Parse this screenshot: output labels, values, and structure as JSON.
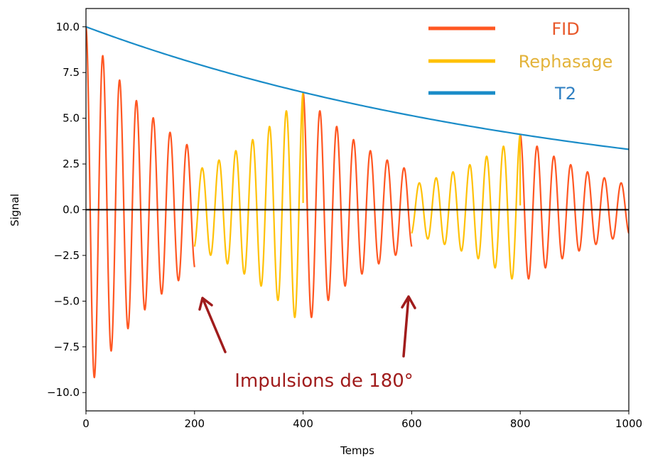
{
  "chart_data": {
    "type": "line",
    "title": "",
    "xlabel": "Temps",
    "ylabel": "Signal",
    "xlim": [
      0,
      1000
    ],
    "ylim": [
      -11,
      11
    ],
    "xticks": [
      0,
      200,
      400,
      600,
      800,
      1000
    ],
    "xtick_labels": [
      "0",
      "200",
      "400",
      "600",
      "800",
      "1000"
    ],
    "yticks": [
      -10.0,
      -7.5,
      -5.0,
      -2.5,
      0.0,
      2.5,
      5.0,
      7.5,
      10.0
    ],
    "ytick_labels": [
      "−10.0",
      "−7.5",
      "−5.0",
      "−2.5",
      "0.0",
      "2.5",
      "5.0",
      "7.5",
      "10.0"
    ],
    "grid": false,
    "legend_position": "top-right",
    "series": [
      {
        "name": "FID",
        "color": "#ff5722",
        "kind": "decaying-cosine",
        "amplitude": 10.0,
        "period": 31.0,
        "intervals": [
          [
            0,
            200
          ],
          [
            400,
            600
          ],
          [
            800,
            1000
          ]
        ],
        "peaks_approx": [
          [
            0,
            10.0
          ],
          [
            30,
            8.4
          ],
          [
            62,
            7.0
          ],
          [
            93,
            5.9
          ],
          [
            124,
            4.9
          ],
          [
            155,
            4.1
          ],
          [
            186,
            3.4
          ],
          [
            400,
            6.4
          ],
          [
            430,
            5.3
          ],
          [
            460,
            4.4
          ],
          [
            490,
            3.7
          ],
          [
            520,
            3.1
          ],
          [
            550,
            2.6
          ],
          [
            580,
            2.2
          ],
          [
            800,
            4.1
          ],
          [
            830,
            3.4
          ],
          [
            860,
            2.8
          ],
          [
            890,
            2.3
          ],
          [
            920,
            1.9
          ],
          [
            950,
            1.6
          ],
          [
            980,
            1.3
          ]
        ]
      },
      {
        "name": "Rephasage",
        "color": "#ffc107",
        "kind": "growing-cosine",
        "period": 31.0,
        "intervals": [
          [
            200,
            400
          ],
          [
            600,
            800
          ]
        ],
        "peaks_approx": [
          [
            213,
            3.4
          ],
          [
            244,
            3.8
          ],
          [
            275,
            4.2
          ],
          [
            306,
            4.6
          ],
          [
            337,
            5.2
          ],
          [
            368,
            5.7
          ],
          [
            613,
            2.1
          ],
          [
            644,
            2.4
          ],
          [
            675,
            2.7
          ],
          [
            706,
            3.0
          ],
          [
            737,
            3.3
          ],
          [
            768,
            3.7
          ]
        ]
      },
      {
        "name": "T2",
        "color": "#1a8cc8",
        "kind": "exponential-envelope",
        "x": [
          0,
          100,
          200,
          300,
          400,
          500,
          600,
          700,
          800,
          900,
          1000
        ],
        "values": [
          10.0,
          8.95,
          8.0,
          7.15,
          6.4,
          5.7,
          5.1,
          4.6,
          4.1,
          3.65,
          3.3
        ]
      },
      {
        "name": "",
        "color": "#000000",
        "kind": "baseline",
        "x": [
          0,
          1000
        ],
        "values": [
          0,
          0
        ]
      }
    ],
    "legend": [
      {
        "label": "FID",
        "color": "#ff5722",
        "text_color": "#e8582a"
      },
      {
        "label": "Rephasage",
        "color": "#ffc107",
        "text_color": "#e3b33a"
      },
      {
        "label": "T2",
        "color": "#1a8cc8",
        "text_color": "#2e7fc2"
      }
    ],
    "annotation": {
      "text": "Impulsions de 180°",
      "color": "#a01c1c",
      "arrow_targets": [
        [
          207,
          -4.4
        ],
        [
          598,
          -4.4
        ]
      ]
    }
  }
}
